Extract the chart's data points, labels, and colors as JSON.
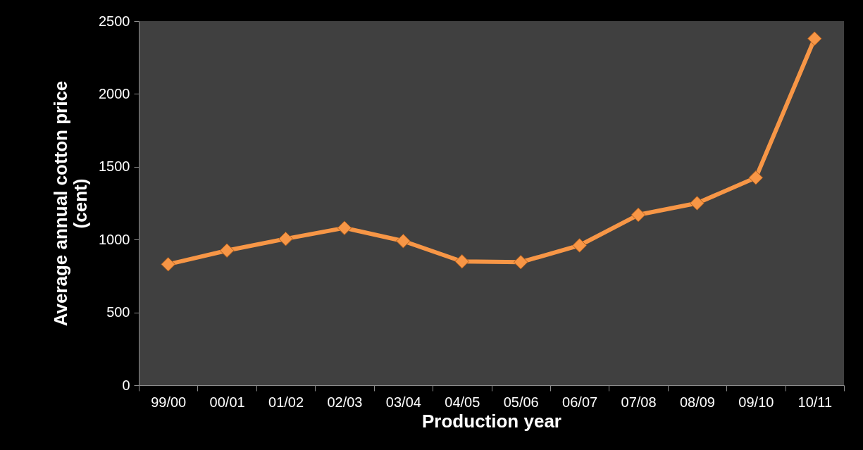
{
  "chart_data": {
    "type": "line",
    "xlabel": "Production year",
    "ylabel": "Average annual cotton price (cent)",
    "categories": [
      "99/00",
      "00/01",
      "01/02",
      "02/03",
      "03/04",
      "04/05",
      "05/06",
      "06/07",
      "07/08",
      "08/09",
      "09/10",
      "10/11"
    ],
    "series": [
      {
        "color": "#f79646",
        "values": [
          830,
          925,
          1005,
          1080,
          990,
          850,
          845,
          960,
          1170,
          1250,
          1425,
          2380
        ]
      }
    ],
    "ylim": [
      0,
      2500
    ],
    "yticks": [
      0,
      500,
      1000,
      1500,
      2000,
      2500
    ],
    "grid": false,
    "marker": "diamond",
    "line_style": "solid"
  }
}
